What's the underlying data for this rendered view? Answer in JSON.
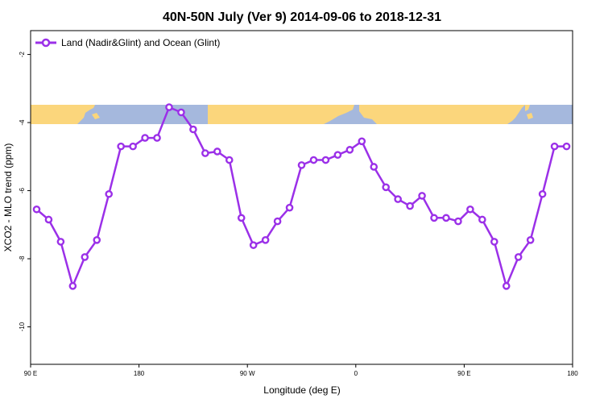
{
  "chart_data": {
    "type": "line",
    "title": "40N-50N July (Ver 9)   2014-09-06 to 2018-12-31",
    "xlabel": "Longitude (deg E)",
    "ylabel": "XCO2 - MLO trend (ppm)",
    "xlim": [
      90,
      540
    ],
    "ylim": [
      -11.1,
      -1.3
    ],
    "xticks": [
      {
        "value": 90,
        "label": "90 E"
      },
      {
        "value": 180,
        "label": "180"
      },
      {
        "value": 270,
        "label": "90 W"
      },
      {
        "value": 360,
        "label": "0"
      },
      {
        "value": 450,
        "label": "90 E"
      },
      {
        "value": 540,
        "label": "180"
      }
    ],
    "yticks": [
      {
        "value": -2,
        "label": "-2"
      },
      {
        "value": -4,
        "label": "-4"
      },
      {
        "value": -6,
        "label": "-6"
      },
      {
        "value": -8,
        "label": "-8"
      },
      {
        "value": -10,
        "label": "-10"
      }
    ],
    "grid": false,
    "legend_position": "top-left",
    "series": [
      {
        "name": "Land (Nadir&Glint) and Ocean (Glint)",
        "color": "#9b30e8",
        "x": [
          95,
          105,
          115,
          125,
          135,
          145,
          155,
          165,
          175,
          185,
          195,
          205,
          215,
          225,
          235,
          245,
          255,
          265,
          275,
          285,
          295,
          305,
          315,
          325,
          335,
          345,
          355,
          365,
          375,
          385,
          395,
          405,
          415,
          425,
          435,
          445,
          455,
          465,
          475,
          485,
          495,
          505,
          515,
          525,
          535
        ],
        "y": [
          -6.55,
          -6.85,
          -7.5,
          -8.8,
          -7.95,
          -7.45,
          -6.1,
          -4.7,
          -4.7,
          -4.45,
          -4.45,
          -3.55,
          -3.7,
          -4.2,
          -4.9,
          -4.85,
          -5.1,
          -6.8,
          -7.6,
          -7.45,
          -6.9,
          -6.5,
          -5.25,
          -5.1,
          -5.1,
          -4.95,
          -4.8,
          -4.55,
          -5.3,
          -5.9,
          -6.25,
          -6.45,
          -6.15,
          -6.8,
          -6.8,
          -6.9,
          -6.55,
          -6.85,
          -7.5,
          -8.8,
          -7.95,
          -7.45,
          -6.1,
          -4.7,
          -4.7
        ]
      }
    ],
    "map_strip": {
      "ocean_color": "#a5b8dd",
      "land_color": "#fbd67c"
    }
  }
}
